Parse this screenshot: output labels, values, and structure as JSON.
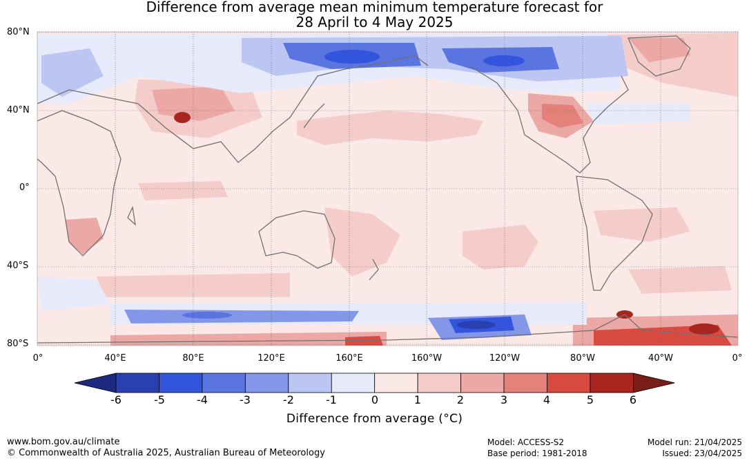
{
  "title": {
    "line1": "Difference from average mean minimum temperature forecast for",
    "line2": "28 April to 4 May 2025"
  },
  "map": {
    "lat_labels": [
      "80°N",
      "40°N",
      "0°",
      "40°S",
      "80°S"
    ],
    "lon_labels": [
      "0°",
      "40°E",
      "80°E",
      "120°E",
      "160°E",
      "160°W",
      "120°W",
      "80°W",
      "40°W",
      "0°"
    ]
  },
  "colorbar": {
    "ticks": [
      "-6",
      "-5",
      "-4",
      "-3",
      "-2",
      "-1",
      "0",
      "1",
      "2",
      "3",
      "4",
      "5",
      "6"
    ],
    "colors": [
      "#1c2a80",
      "#2a3fb0",
      "#3355dd",
      "#5a74e0",
      "#8496e8",
      "#bcc6f2",
      "#e6eafa",
      "#fbe9e8",
      "#f4cdcb",
      "#eba8a4",
      "#e4817b",
      "#d94a40",
      "#a8261f",
      "#781d17"
    ],
    "label": "Difference from average (°C)"
  },
  "footer": {
    "url": "www.bom.gov.au/climate",
    "copyright": "© Commonwealth of Australia 2025, Australian Bureau of Meteorology",
    "model": "Model: ACCESS-S2",
    "base_period": "Base period: 1981-2018",
    "model_run": "Model run: 21/04/2025",
    "issued": "Issued: 23/04/2025"
  }
}
